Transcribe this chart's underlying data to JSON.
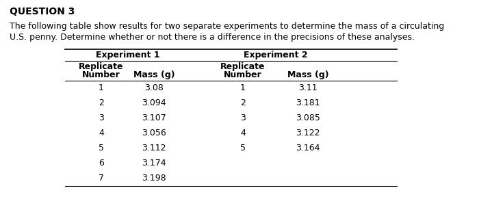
{
  "title": "QUESTION 3",
  "description_line1": "The following table show results for two separate experiments to determine the mass of a circulating",
  "description_line2": "U.S. penny. Determine whether or not there is a difference in the precisions of these analyses.",
  "exp1_header": "Experiment 1",
  "exp2_header": "Experiment 2",
  "exp1_replicates": [
    1,
    2,
    3,
    4,
    5,
    6,
    7
  ],
  "exp1_masses": [
    "3.08",
    "3.094",
    "3.107",
    "3.056",
    "3.112",
    "3.174",
    "3.198"
  ],
  "exp2_replicates": [
    1,
    2,
    3,
    4,
    5
  ],
  "exp2_masses": [
    "3.11",
    "3.181",
    "3.085",
    "3.122",
    "3.164"
  ],
  "bg_color": "#ffffff",
  "text_color": "#000000",
  "fig_width": 7.0,
  "fig_height": 3.1,
  "dpi": 100
}
